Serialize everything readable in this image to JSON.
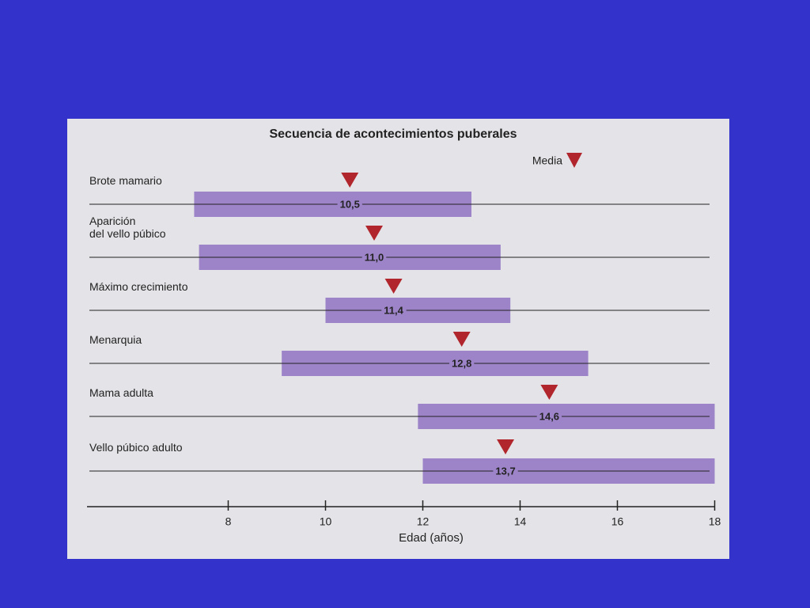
{
  "chart_data": {
    "type": "range",
    "title": "Secuencia de acontecimientos puberales",
    "x_label": "Edad (años)",
    "categories": [
      "Brote mamario",
      "Aparición\ndel vello púbico",
      "Máximo crecimiento",
      "Menarquia",
      "Mama adulta",
      "Vello púbico adulto"
    ],
    "low": [
      7.3,
      7.4,
      10.0,
      9.1,
      11.9,
      12.0
    ],
    "high": [
      13.0,
      13.6,
      13.8,
      15.4,
      18.0,
      18.0
    ],
    "bar_color": "#9d84c9",
    "series": [
      {
        "name": "Media",
        "color": "#b0262c",
        "values": [
          10.5,
          11.0,
          11.4,
          12.8,
          14.6,
          13.7
        ],
        "value_labels": [
          "10,5",
          "11,0",
          "11,4",
          "12,8",
          "14,6",
          "13,7"
        ]
      }
    ],
    "xlim": [
      5,
      18
    ],
    "xticks": [
      8,
      10,
      12,
      14,
      16,
      18
    ]
  }
}
